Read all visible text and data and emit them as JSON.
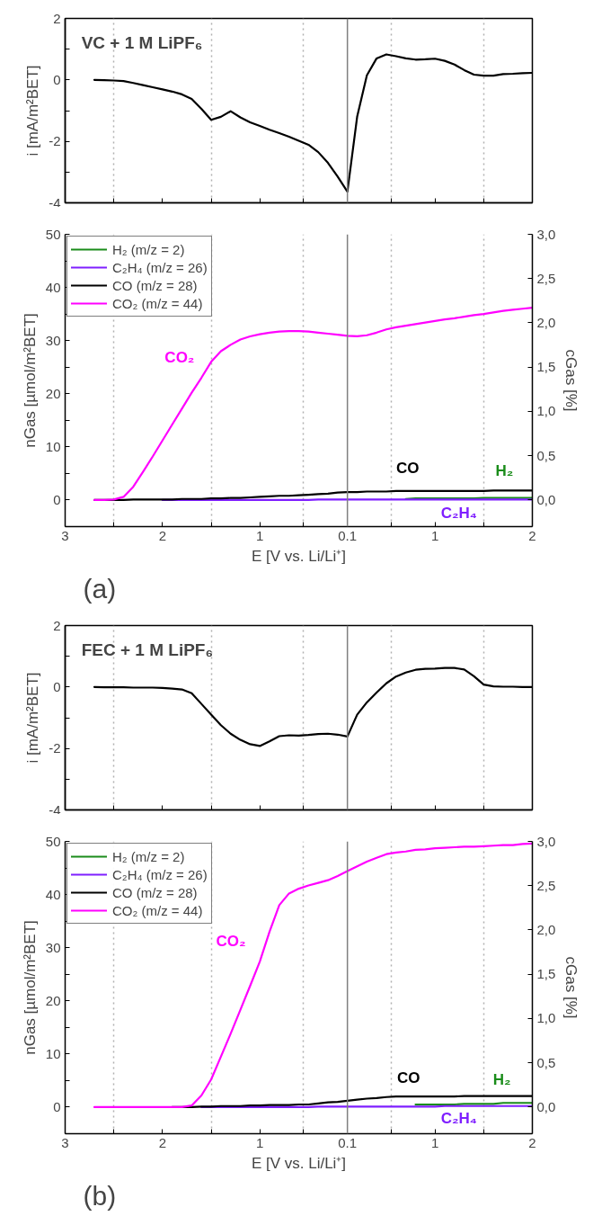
{
  "chart_data": [
    {
      "type": "line",
      "ylabel": "i [mA/m²BET]",
      "tick_labels": "y",
      "grid": "x",
      "categories": [
        "3",
        null,
        null,
        null,
        null,
        null,
        null,
        null,
        null,
        null,
        "2",
        null,
        null,
        null,
        null,
        null,
        null,
        null,
        null,
        null,
        "1",
        null,
        null,
        null,
        null,
        null,
        null,
        null,
        null,
        "0.1",
        null,
        null,
        null,
        null,
        null,
        null,
        null,
        null,
        "1",
        null,
        null,
        null,
        null,
        null,
        null,
        null,
        null,
        null,
        "2"
      ],
      "ylim": [
        -4,
        2
      ],
      "yticks": [
        -4,
        {
          "value": -3,
          "label": null
        },
        -2,
        {
          "value": -1,
          "label": null
        },
        0,
        {
          "value": 1,
          "label": null
        },
        2
      ],
      "ref_lines": [
        {
          "axis": "x",
          "value": "0.1",
          "color": "#808080",
          "line_style": "solid"
        }
      ],
      "annotations": [
        "VC + 1 M LiPF₆"
      ],
      "series": [
        {
          "color": "#000000",
          "values": [
            null,
            null,
            null,
            0,
            -0.01,
            -0.02,
            -0.04,
            -0.1,
            -0.17,
            -0.24,
            -0.31,
            -0.38,
            -0.47,
            -0.62,
            -0.94,
            -1.3,
            -1.2,
            -1.02,
            -1.22,
            -1.38,
            -1.5,
            -1.62,
            -1.73,
            -1.85,
            -1.98,
            -2.11,
            -2.35,
            -2.7,
            -3.15,
            -3.64,
            -1.2,
            0.15,
            0.7,
            0.83,
            0.77,
            0.7,
            0.66,
            0.67,
            0.69,
            0.62,
            0.5,
            0.32,
            0.17,
            0.14,
            0.14,
            0.19,
            0.2,
            0.22,
            0.23
          ]
        }
      ]
    },
    {
      "type": "line",
      "xlabel": "E [V vs. Li/Li⁺]",
      "ylabel": "nGas [µmol/m²BET]",
      "y2label": "cGas [%]",
      "legend": "top left",
      "grid": "x",
      "categories": [
        "3",
        null,
        null,
        null,
        null,
        null,
        null,
        null,
        null,
        null,
        "2",
        null,
        null,
        null,
        null,
        null,
        null,
        null,
        null,
        null,
        "1",
        null,
        null,
        null,
        null,
        null,
        null,
        null,
        null,
        "0.1",
        null,
        null,
        null,
        null,
        null,
        null,
        null,
        null,
        "1",
        null,
        null,
        null,
        null,
        null,
        null,
        null,
        null,
        null,
        "2"
      ],
      "ylim": [
        -5,
        50
      ],
      "yticks": [
        0,
        {
          "value": 5,
          "label": null
        },
        10,
        {
          "value": 15,
          "label": null
        },
        20,
        {
          "value": 25,
          "label": null
        },
        30,
        {
          "value": 35,
          "label": null
        },
        40,
        {
          "value": 45,
          "label": null
        },
        50
      ],
      "y2lim": [
        -0.3,
        3.0
      ],
      "y2ticks": [
        {
          "value": 0,
          "label": "0,0"
        },
        {
          "value": 0.5,
          "label": "0,5"
        },
        {
          "value": 1,
          "label": "1,0"
        },
        {
          "value": 1.5,
          "label": "1,5"
        },
        {
          "value": 2,
          "label": "2,0"
        },
        {
          "value": 2.5,
          "label": "2,5"
        },
        {
          "value": 3,
          "label": "3,0"
        }
      ],
      "ref_lines": [
        {
          "axis": "x",
          "value": "0.1",
          "color": "#808080",
          "line_style": "solid"
        }
      ],
      "annotations": [
        "(a)",
        "CO₂",
        "CO",
        "H₂",
        "C₂H₄"
      ],
      "series": [
        {
          "name": "H₂ (m/z = 2)",
          "color": "#1a8c1a",
          "values": [
            null,
            null,
            null,
            null,
            null,
            null,
            null,
            null,
            null,
            null,
            null,
            null,
            null,
            null,
            null,
            null,
            null,
            null,
            null,
            null,
            null,
            null,
            null,
            null,
            null,
            null,
            null,
            null,
            null,
            null,
            null,
            null,
            null,
            null,
            null,
            0.2,
            0.3,
            0.3,
            0.3,
            0.3,
            0.3,
            0.3,
            0.3,
            0.4,
            0.4,
            0.4,
            0.4,
            0.4,
            0.4
          ]
        },
        {
          "name": "C₂H₄ (m/z = 26)",
          "color": "#7f1fff",
          "values": [
            null,
            null,
            null,
            null,
            null,
            null,
            null,
            null,
            null,
            null,
            0,
            0,
            0,
            0,
            0,
            0,
            0,
            0,
            0,
            0,
            0,
            0,
            0,
            0,
            0,
            0,
            0.1,
            0.1,
            0.1,
            0.1,
            0.1,
            0.1,
            0.1,
            0.1,
            0.1,
            0.1,
            0.1,
            0.1,
            0.1,
            0.1,
            0.1,
            0.1,
            0.1,
            0.1,
            0.1,
            0.1,
            0.1,
            0.1,
            0.1
          ]
        },
        {
          "name": "CO (m/z = 28)",
          "color": "#000000",
          "values": [
            null,
            null,
            null,
            0,
            0,
            0,
            0,
            0.1,
            0.1,
            0.1,
            0.1,
            0.1,
            0.2,
            0.2,
            0.2,
            0.3,
            0.3,
            0.4,
            0.4,
            0.5,
            0.6,
            0.7,
            0.8,
            0.8,
            0.9,
            1.0,
            1.1,
            1.2,
            1.4,
            1.5,
            1.5,
            1.6,
            1.6,
            1.6,
            1.7,
            1.7,
            1.7,
            1.7,
            1.7,
            1.7,
            1.7,
            1.7,
            1.7,
            1.7,
            1.8,
            1.8,
            1.8,
            1.8,
            1.8
          ]
        },
        {
          "name": "CO₂ (m/z = 44)",
          "color": "#ff00ff",
          "values": [
            null,
            null,
            null,
            0,
            0,
            0.1,
            0.6,
            2.5,
            5.3,
            8.2,
            11.2,
            14.2,
            17.2,
            20.2,
            23.0,
            26.0,
            28.0,
            29.2,
            30.2,
            30.8,
            31.2,
            31.5,
            31.7,
            31.8,
            31.8,
            31.7,
            31.5,
            31.3,
            31.1,
            30.9,
            30.8,
            31.0,
            31.5,
            32.1,
            32.5,
            32.8,
            33.1,
            33.4,
            33.7,
            34.0,
            34.2,
            34.5,
            34.8,
            35.0,
            35.3,
            35.6,
            35.8,
            36.0,
            36.2
          ]
        }
      ]
    },
    {
      "type": "line",
      "ylabel": "i [mA/m²BET]",
      "tick_labels": "y",
      "grid": "x",
      "categories": [
        "3",
        null,
        null,
        null,
        null,
        null,
        null,
        null,
        null,
        null,
        "2",
        null,
        null,
        null,
        null,
        null,
        null,
        null,
        null,
        null,
        "1",
        null,
        null,
        null,
        null,
        null,
        null,
        null,
        null,
        "0.1",
        null,
        null,
        null,
        null,
        null,
        null,
        null,
        null,
        "1",
        null,
        null,
        null,
        null,
        null,
        null,
        null,
        null,
        null,
        "2"
      ],
      "ylim": [
        -4,
        2
      ],
      "yticks": [
        -4,
        {
          "value": -3,
          "label": null
        },
        -2,
        {
          "value": -1,
          "label": null
        },
        0,
        {
          "value": 1,
          "label": null
        },
        2
      ],
      "ref_lines": [
        {
          "axis": "x",
          "value": "0.1",
          "color": "#808080",
          "line_style": "solid"
        }
      ],
      "annotations": [
        "FEC + 1 M LiPF₆"
      ],
      "series": [
        {
          "color": "#000000",
          "values": [
            null,
            null,
            null,
            0,
            -0.01,
            -0.01,
            -0.01,
            -0.02,
            -0.02,
            -0.02,
            -0.03,
            -0.05,
            -0.08,
            -0.2,
            -0.55,
            -0.9,
            -1.24,
            -1.52,
            -1.72,
            -1.86,
            -1.92,
            -1.77,
            -1.6,
            -1.57,
            -1.58,
            -1.56,
            -1.53,
            -1.52,
            -1.55,
            -1.61,
            -0.9,
            -0.5,
            -0.18,
            0.12,
            0.34,
            0.47,
            0.56,
            0.59,
            0.6,
            0.62,
            0.62,
            0.57,
            0.35,
            0.08,
            0.02,
            0.01,
            0.01,
            0,
            0
          ]
        }
      ]
    },
    {
      "type": "line",
      "xlabel": "E [V vs. Li/Li⁺]",
      "ylabel": "nGas [µmol/m²BET]",
      "y2label": "cGas [%]",
      "legend": "top left",
      "grid": "x",
      "categories": [
        "3",
        null,
        null,
        null,
        null,
        null,
        null,
        null,
        null,
        null,
        "2",
        null,
        null,
        null,
        null,
        null,
        null,
        null,
        null,
        null,
        "1",
        null,
        null,
        null,
        null,
        null,
        null,
        null,
        null,
        "0.1",
        null,
        null,
        null,
        null,
        null,
        null,
        null,
        null,
        "1",
        null,
        null,
        null,
        null,
        null,
        null,
        null,
        null,
        null,
        "2"
      ],
      "ylim": [
        -5,
        50
      ],
      "yticks": [
        0,
        {
          "value": 5,
          "label": null
        },
        10,
        {
          "value": 15,
          "label": null
        },
        20,
        {
          "value": 25,
          "label": null
        },
        30,
        {
          "value": 35,
          "label": null
        },
        40,
        {
          "value": 45,
          "label": null
        },
        50
      ],
      "y2lim": [
        -0.3,
        3.0
      ],
      "y2ticks": [
        {
          "value": 0,
          "label": "0,0"
        },
        {
          "value": 0.5,
          "label": "0,5"
        },
        {
          "value": 1,
          "label": "1,0"
        },
        {
          "value": 1.5,
          "label": "1,5"
        },
        {
          "value": 2,
          "label": "2,0"
        },
        {
          "value": 2.5,
          "label": "2,5"
        },
        {
          "value": 3,
          "label": "3,0"
        }
      ],
      "ref_lines": [
        {
          "axis": "x",
          "value": "0.1",
          "color": "#808080",
          "line_style": "solid"
        }
      ],
      "annotations": [
        "(b)",
        "CO₂",
        "CO",
        "H₂",
        "C₂H₄"
      ],
      "series": [
        {
          "name": "H₂ (m/z = 2)",
          "color": "#1a8c1a",
          "values": [
            null,
            null,
            null,
            null,
            null,
            null,
            null,
            null,
            null,
            null,
            null,
            null,
            null,
            null,
            null,
            null,
            null,
            null,
            null,
            null,
            null,
            null,
            null,
            null,
            null,
            null,
            null,
            null,
            null,
            null,
            null,
            null,
            null,
            null,
            null,
            null,
            0.5,
            0.5,
            0.5,
            0.5,
            0.5,
            0.6,
            0.6,
            0.6,
            0.6,
            0.8,
            0.8,
            0.8,
            0.8
          ]
        },
        {
          "name": "C₂H₄ (m/z = 26)",
          "color": "#7f1fff",
          "values": [
            null,
            null,
            null,
            null,
            null,
            null,
            null,
            null,
            null,
            null,
            null,
            null,
            null,
            null,
            0,
            0,
            0,
            0,
            0,
            0,
            0,
            0,
            0,
            0,
            0,
            0,
            0.1,
            0.1,
            0.1,
            0.1,
            0.1,
            0.1,
            0.1,
            0.1,
            0.1,
            0.1,
            0.1,
            0.1,
            0.1,
            0.2,
            0.2,
            0.2,
            0.2,
            0.2,
            0.2,
            0.2,
            0.2,
            0.2,
            0.2
          ]
        },
        {
          "name": "CO (m/z = 28)",
          "color": "#000000",
          "values": [
            null,
            null,
            null,
            null,
            null,
            null,
            null,
            null,
            null,
            null,
            null,
            0,
            0,
            0,
            0.1,
            0.1,
            0.2,
            0.2,
            0.2,
            0.3,
            0.3,
            0.4,
            0.4,
            0.4,
            0.5,
            0.5,
            0.7,
            0.9,
            1.0,
            1.2,
            1.4,
            1.6,
            1.7,
            1.9,
            2.0,
            2.0,
            2.0,
            2.0,
            2.0,
            2.0,
            2.0,
            2.1,
            2.1,
            2.1,
            2.1,
            2.1,
            2.1,
            2.1,
            2.1
          ]
        },
        {
          "name": "CO₂ (m/z = 44)",
          "color": "#ff00ff",
          "values": [
            null,
            null,
            null,
            0,
            0,
            0,
            0,
            0,
            0,
            0,
            0,
            0,
            0,
            0.3,
            2.2,
            5.2,
            9.5,
            13.8,
            18.3,
            22.8,
            27.4,
            33.0,
            38.0,
            40.2,
            41.1,
            41.7,
            42.2,
            42.7,
            43.5,
            44.4,
            45.3,
            46.2,
            46.9,
            47.6,
            47.9,
            48.1,
            48.4,
            48.5,
            48.7,
            48.8,
            48.9,
            49.0,
            49.0,
            49.1,
            49.2,
            49.3,
            49.3,
            49.5,
            49.6
          ]
        }
      ]
    }
  ]
}
